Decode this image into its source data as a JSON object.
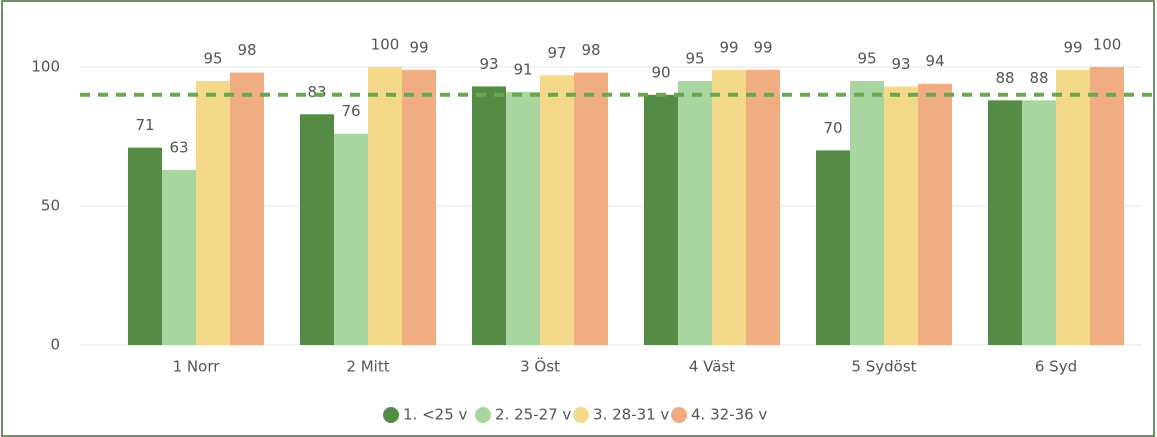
{
  "chart_data": {
    "type": "bar",
    "categories": [
      "1 Norr",
      "2 Mitt",
      "3 Öst",
      "4 Väst",
      "5 Sydöst",
      "6 Syd"
    ],
    "series": [
      {
        "name": "1. <25 v",
        "color": "#548b45",
        "values": [
          71,
          83,
          93,
          90,
          70,
          88
        ]
      },
      {
        "name": "2. 25-27 v",
        "color": "#a8d5a0",
        "values": [
          63,
          76,
          91,
          95,
          95,
          88
        ]
      },
      {
        "name": "3. 28-31 v",
        "color": "#f5d98b",
        "values": [
          95,
          100,
          97,
          99,
          93,
          99
        ]
      },
      {
        "name": "4. 32-36 v",
        "color": "#f0ad82",
        "values": [
          98,
          99,
          98,
          99,
          94,
          100
        ]
      }
    ],
    "reference_line": {
      "value": 90,
      "color": "#6aa84f"
    },
    "ylim": [
      0,
      115
    ],
    "yticks": [
      0,
      50,
      100
    ],
    "grid": true,
    "legend": "bottom"
  }
}
